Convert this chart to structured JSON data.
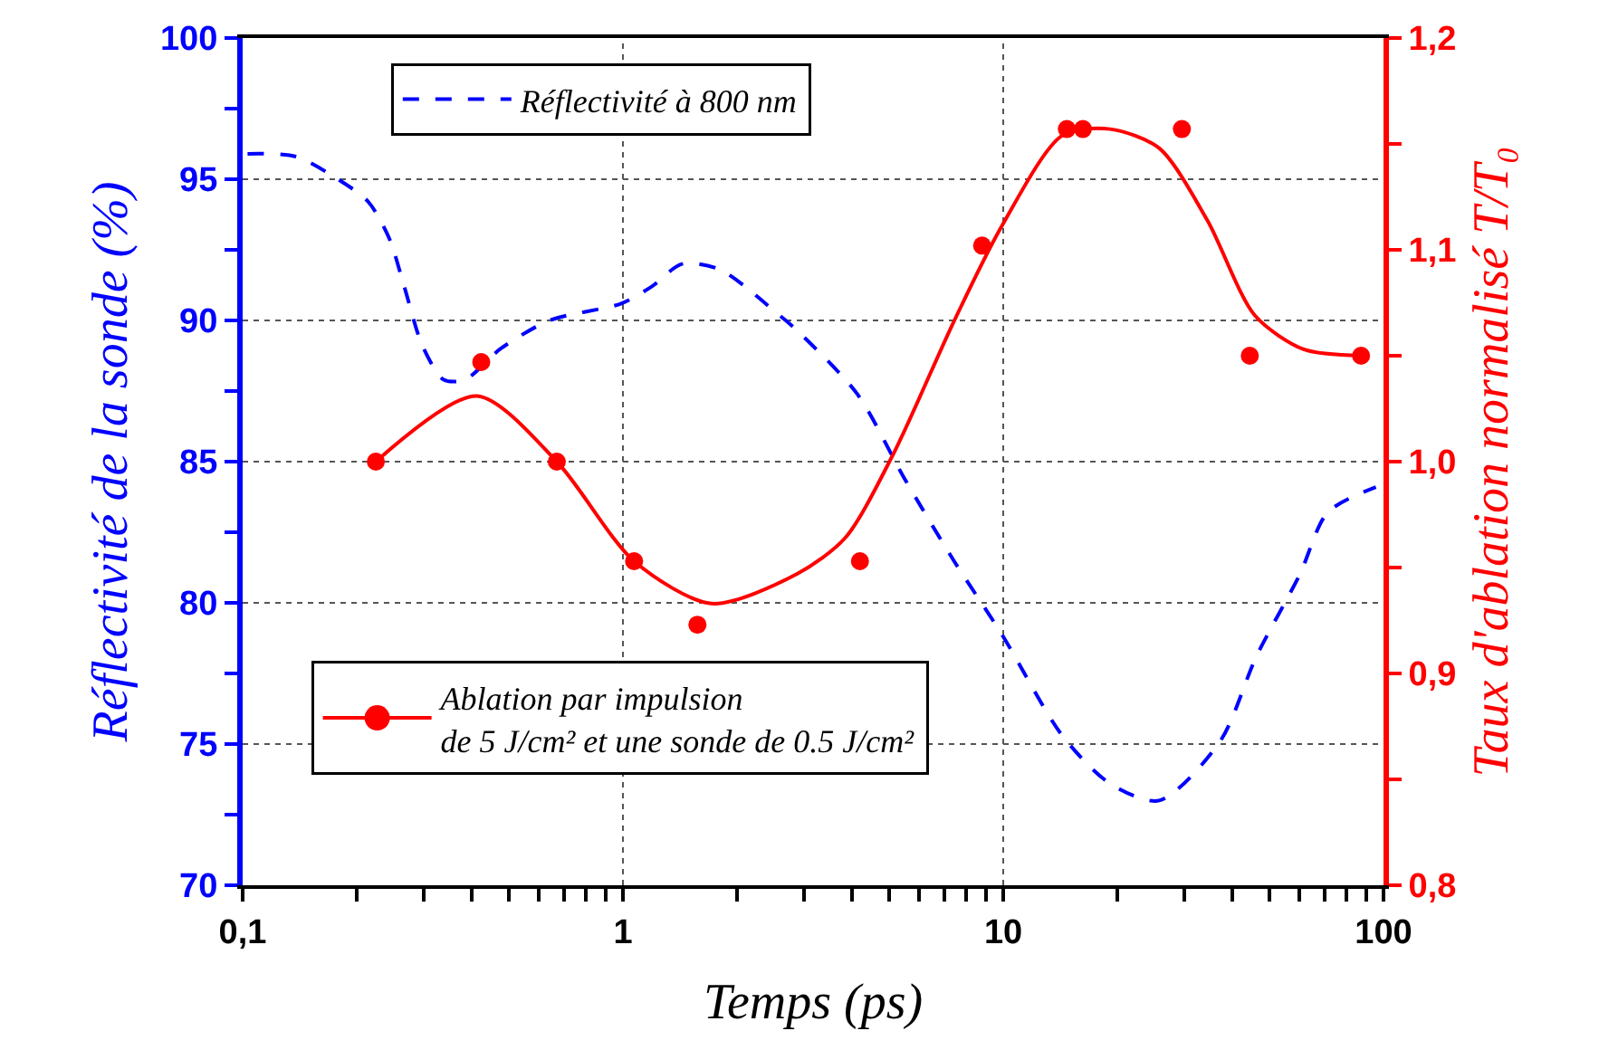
{
  "chart_data": {
    "type": "line",
    "xlabel": "Temps (ps)",
    "ylabel": "Réflectivité de la sonde (%)",
    "y2label": "Taux d'ablation normalisé T/T₀",
    "log": "x",
    "grid": true,
    "legend": "top",
    "xlim": [
      0.1,
      100
    ],
    "xticks": [
      {
        "value": 0.1,
        "label": "0,1"
      },
      {
        "value": 0.2,
        "label": null
      },
      {
        "value": 0.3,
        "label": null
      },
      {
        "value": 0.4,
        "label": null
      },
      {
        "value": 0.5,
        "label": null
      },
      {
        "value": 0.6,
        "label": null
      },
      {
        "value": 0.7,
        "label": null
      },
      {
        "value": 0.8,
        "label": null
      },
      {
        "value": 0.9,
        "label": null
      },
      1,
      {
        "value": 2,
        "label": null
      },
      {
        "value": 3,
        "label": null
      },
      {
        "value": 4,
        "label": null
      },
      {
        "value": 5,
        "label": null
      },
      {
        "value": 6,
        "label": null
      },
      {
        "value": 7,
        "label": null
      },
      {
        "value": 8,
        "label": null
      },
      {
        "value": 9,
        "label": null
      },
      10,
      {
        "value": 20,
        "label": null
      },
      {
        "value": 30,
        "label": null
      },
      {
        "value": 40,
        "label": null
      },
      {
        "value": 50,
        "label": null
      },
      {
        "value": 60,
        "label": null
      },
      {
        "value": 70,
        "label": null
      },
      {
        "value": 80,
        "label": null
      },
      {
        "value": 90,
        "label": null
      },
      100
    ],
    "ylim": [
      70,
      100
    ],
    "yticks": [
      70,
      {
        "value": 72.5,
        "label": null
      },
      75,
      {
        "value": 77.5,
        "label": null
      },
      80,
      {
        "value": 82.5,
        "label": null
      },
      85,
      {
        "value": 87.5,
        "label": null
      },
      90,
      {
        "value": 92.5,
        "label": null
      },
      95,
      {
        "value": 97.5,
        "label": null
      },
      100
    ],
    "y2lim": [
      0.8,
      1.2
    ],
    "y2ticks": [
      {
        "value": 0.8,
        "label": "0,8"
      },
      {
        "value": 0.85,
        "label": null
      },
      {
        "value": 0.9,
        "label": "0,9"
      },
      {
        "value": 0.95,
        "label": null
      },
      {
        "value": 1.0,
        "label": "1,0"
      },
      {
        "value": 1.05,
        "label": null
      },
      {
        "value": 1.1,
        "label": "1,1"
      },
      {
        "value": 1.15,
        "label": null
      },
      {
        "value": 1.2,
        "label": "1,2"
      }
    ],
    "series": [
      {
        "name": "Réflectivité à 800 nm",
        "line_style": "dashed",
        "marker": "none",
        "color": "#0000ff",
        "x": [
          0.103,
          0.138,
          0.178,
          0.214,
          0.243,
          0.266,
          0.297,
          0.338,
          0.384,
          0.477,
          0.641,
          0.99,
          1.19,
          1.43,
          1.8,
          2.57,
          2.84,
          4.13,
          5.5,
          7.41,
          9.9,
          14.3,
          19.1,
          25.7,
          37.2,
          46.3,
          60.2,
          71.3,
          95.5
        ],
        "values": [
          95.9,
          95.8,
          95.0,
          94.2,
          92.9,
          91.2,
          89.1,
          87.9,
          87.9,
          89.0,
          90.0,
          90.6,
          91.2,
          92.0,
          91.8,
          90.2,
          89.7,
          87.4,
          84.4,
          81.5,
          78.9,
          75.3,
          73.6,
          73.0,
          75.1,
          78.1,
          81.0,
          83.2,
          84.1
        ]
      },
      {
        "axis": "y2",
        "line_style": "solid",
        "marker": "none",
        "color": "#ff0000",
        "x": [
          0.224,
          0.413,
          0.67,
          1.07,
          1.71,
          2.87,
          3.84,
          5.12,
          7.41,
          9.9,
          14.3,
          19.1,
          25.7,
          34.4,
          45.9,
          61.7,
          87.3
        ],
        "values": [
          1.0,
          1.031,
          1.0,
          0.953,
          0.933,
          0.947,
          0.964,
          1.003,
          1.066,
          1.111,
          1.154,
          1.157,
          1.148,
          1.114,
          1.069,
          1.053,
          1.05
        ]
      },
      {
        "name": "Ablation par impulsion\nde 5 J/cm² et une sonde de 0.5 J/cm²",
        "type": "scatter",
        "axis": "y2",
        "marker": "circle",
        "line_style": "solid",
        "color": "#ff0000",
        "x": [
          0.224,
          0.424,
          0.67,
          1.07,
          1.57,
          4.2,
          8.8,
          14.7,
          16.2,
          29.5,
          44.5,
          87.3
        ],
        "values": [
          1.0,
          1.047,
          1.0,
          0.953,
          0.923,
          0.953,
          1.102,
          1.157,
          1.157,
          1.157,
          1.05,
          1.05
        ]
      }
    ]
  }
}
